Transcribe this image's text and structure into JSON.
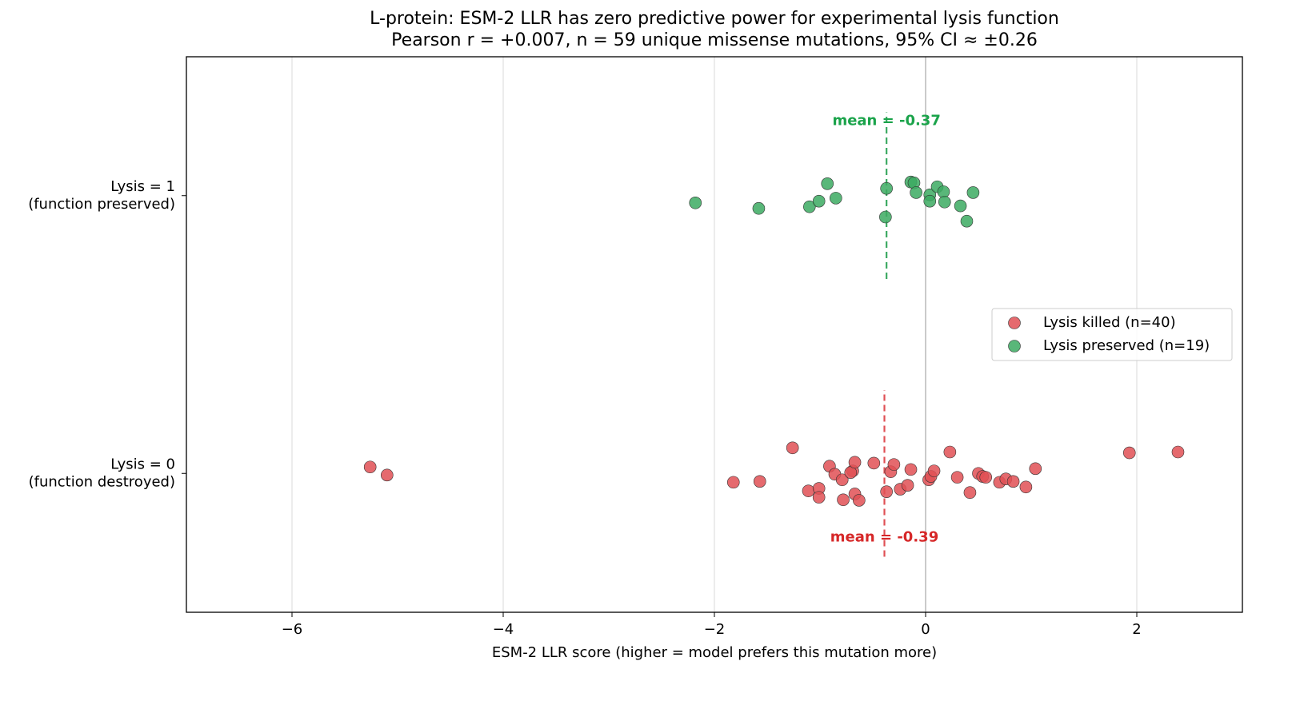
{
  "chart_data": {
    "type": "scatter",
    "title": "L-protein: ESM-2 LLR has zero predictive power for experimental lysis function",
    "subtitle": "Pearson r = +0.007, n = 59 unique missense mutations, 95% CI ≈ ±0.26",
    "x_label": "ESM-2 LLR score (higher = model prefers this mutation more)",
    "xlim": [
      -7,
      3
    ],
    "ylim": [
      -0.5,
      1.5
    ],
    "xticks": [
      {
        "value": -6,
        "label": "−6"
      },
      {
        "value": -4,
        "label": "−4"
      },
      {
        "value": -2,
        "label": "−2"
      },
      0,
      2
    ],
    "yticks": [
      {
        "value": 0,
        "label": "Lysis = 0\n(function destroyed)"
      },
      {
        "value": 1,
        "label": "Lysis = 1\n(function preserved)"
      }
    ],
    "grid": true,
    "reference_x": 0,
    "legend": "right",
    "series": [
      {
        "name": "Lysis killed (n=40)",
        "color": "#e05055",
        "mean": -0.39,
        "mean_label": "mean = -0.39",
        "mean_span": [
          -0.3,
          0.3
        ],
        "mean_color": "#d62728",
        "x": [
          -5.26,
          -5.1,
          -1.82,
          -1.57,
          -1.26,
          -1.11,
          -1.01,
          -1.01,
          -0.91,
          -0.86,
          -0.79,
          -0.78,
          -0.69,
          -0.71,
          -0.67,
          -0.67,
          -0.63,
          -0.49,
          -0.37,
          -0.33,
          -0.3,
          -0.24,
          -0.17,
          -0.14,
          0.03,
          0.05,
          0.08,
          0.23,
          0.3,
          0.42,
          0.5,
          0.54,
          0.57,
          0.7,
          0.76,
          0.83,
          0.95,
          1.04,
          1.93,
          2.39
        ],
        "values": [
          0.023,
          -0.006,
          -0.032,
          -0.029,
          0.092,
          -0.063,
          -0.054,
          -0.086,
          0.026,
          -0.003,
          -0.023,
          -0.095,
          0.009,
          0.003,
          0.04,
          -0.074,
          -0.097,
          0.037,
          -0.066,
          0.006,
          0.032,
          -0.057,
          -0.043,
          0.014,
          -0.023,
          -0.011,
          0.009,
          0.077,
          -0.014,
          -0.069,
          0.0,
          -0.011,
          -0.014,
          -0.032,
          -0.02,
          -0.029,
          -0.049,
          0.017,
          0.074,
          0.077
        ]
      },
      {
        "name": "Lysis preserved (n=19)",
        "color": "#3caa62",
        "mean": -0.37,
        "mean_label": "mean = -0.37",
        "mean_span": [
          0.7,
          1.3
        ],
        "mean_color": "#1aa34a",
        "x": [
          -2.18,
          -1.58,
          -1.1,
          -1.01,
          -0.93,
          -0.85,
          -0.37,
          -0.38,
          -0.14,
          -0.11,
          -0.09,
          0.04,
          0.04,
          0.11,
          0.17,
          0.18,
          0.33,
          0.39,
          0.45
        ],
        "values": [
          0.974,
          0.954,
          0.96,
          0.98,
          1.043,
          0.991,
          1.026,
          0.923,
          1.049,
          1.046,
          1.011,
          1.003,
          0.98,
          1.032,
          1.014,
          0.977,
          0.963,
          0.908,
          1.011
        ]
      }
    ]
  }
}
